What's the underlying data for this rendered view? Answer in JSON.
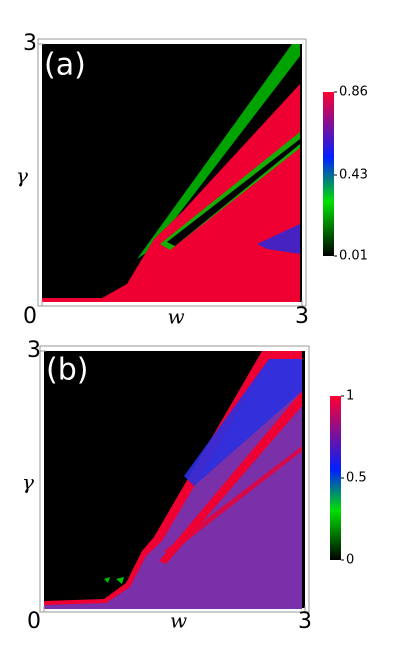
{
  "chart_data": [
    {
      "type": "heatmap",
      "title": "(a)",
      "x_label": "w",
      "y_label": "γ",
      "xlim": [
        0,
        3
      ],
      "ylim": [
        0,
        3
      ],
      "xticks": [
        0,
        3
      ],
      "yticks": [
        3
      ],
      "colorbar": {
        "lim": [
          0.01,
          0.86
        ],
        "ticks": [
          0.01,
          0.43,
          0.86
        ]
      }
    },
    {
      "type": "heatmap",
      "title": "(b)",
      "x_label": "w",
      "y_label": "γ",
      "xlim": [
        0,
        3
      ],
      "ylim": [
        0,
        3
      ],
      "xticks": [
        0,
        3
      ],
      "yticks": [
        3
      ],
      "colorbar": {
        "lim": [
          0,
          1
        ],
        "ticks": [
          0,
          0.5,
          1
        ]
      }
    }
  ]
}
